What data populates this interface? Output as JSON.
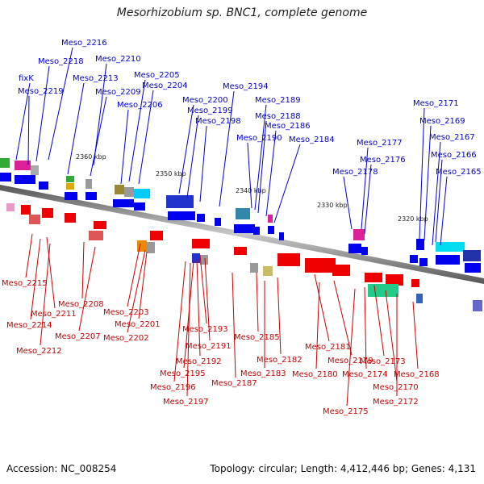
{
  "title": "Mesorhizobium sp. BNC1, complete genome",
  "footer": {
    "accession": "Accession: NC_008254",
    "topology": "Topology: circular; Length: 4,412,446 bp; Genes: 4,131"
  },
  "colors": {
    "forward_label": "#0000cc",
    "reverse_label": "#cc0000",
    "forward_gene": "#0000ee",
    "reverse_gene": "#ee0000",
    "backbone": "#888888"
  },
  "scale_ticks": [
    "2360 kbp",
    "2350 kbp",
    "2340 kbp",
    "2330 kbp",
    "2320 kbp"
  ],
  "forward_labels": [
    "Meso_2216",
    "Meso_2218",
    "Meso_2210",
    "fixK",
    "Meso_2213",
    "Meso_2205",
    "Meso_2219",
    "Meso_2204",
    "Meso_2209",
    "Meso_2206",
    "Meso_2194",
    "Meso_2200",
    "Meso_2199",
    "Meso_2189",
    "Meso_2198",
    "Meso_2188",
    "Meso_2186",
    "Meso_2190",
    "Meso_2184",
    "Meso_2171",
    "Meso_2169",
    "Meso_2177",
    "Meso_2167",
    "Meso_2176",
    "Meso_2166",
    "Meso_2178",
    "Meso_2165"
  ],
  "reverse_labels": [
    "Meso_2215",
    "Meso_2208",
    "Meso_2211",
    "Meso_2214",
    "Meso_2203",
    "Meso_2207",
    "Meso_2201",
    "Meso_2212",
    "Meso_2202",
    "Meso_2193",
    "Meso_2185",
    "Meso_2191",
    "Meso_2181",
    "Meso_2192",
    "Meso_2182",
    "Meso_2179",
    "Meso_2173",
    "Meso_2195",
    "Meso_2183",
    "Meso_2180",
    "Meso_2174",
    "Meso_2168",
    "Meso_2187",
    "Meso_2196",
    "Meso_2170",
    "Meso_2197",
    "Meso_2172",
    "Meso_2175"
  ]
}
